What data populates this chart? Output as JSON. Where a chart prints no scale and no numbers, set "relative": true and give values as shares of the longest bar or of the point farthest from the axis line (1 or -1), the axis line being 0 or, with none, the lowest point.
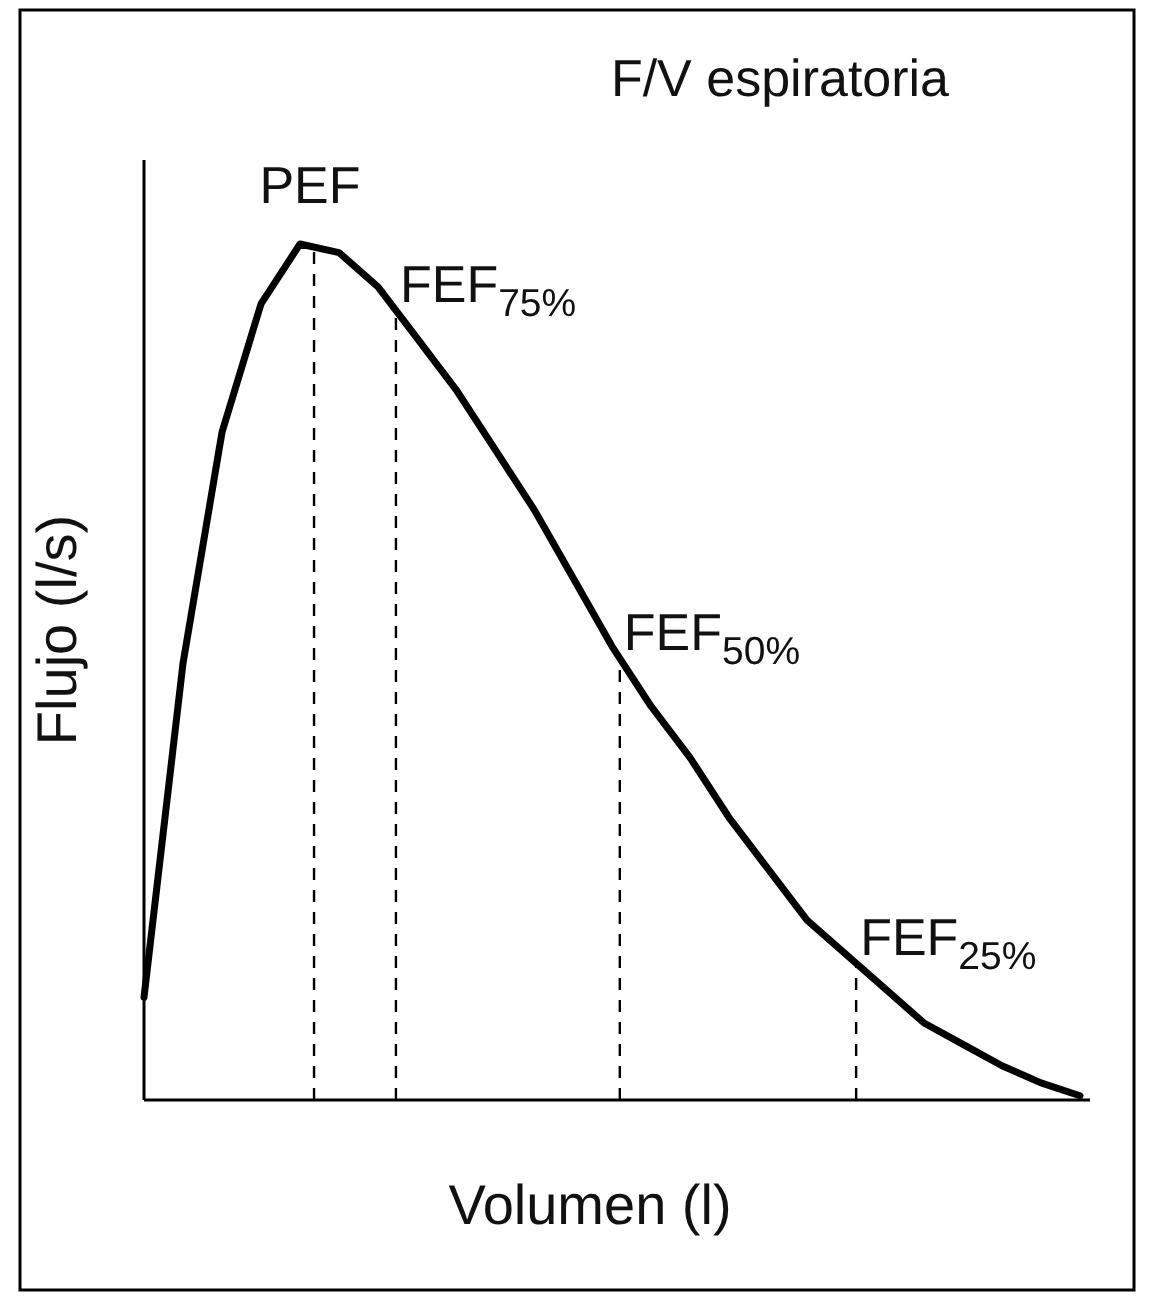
{
  "chart_data": {
    "type": "line",
    "title": "F/V espiratoria",
    "xlabel": "Volumen (l)",
    "ylabel": "Flujo (l/s)",
    "relative": true,
    "categories": [
      null,
      null,
      null,
      null,
      null,
      null,
      null,
      null,
      null,
      null,
      null,
      null,
      null,
      null,
      null,
      null,
      null,
      null,
      null,
      null,
      null,
      null,
      null,
      null,
      null
    ],
    "series": [
      {
        "color": "#000000",
        "line_style": "solid",
        "values": [
          0.12,
          0.51,
          0.78,
          0.93,
          1.0,
          0.99,
          0.95,
          0.89,
          0.83,
          0.76,
          0.69,
          0.61,
          0.53,
          0.46,
          0.4,
          0.33,
          0.27,
          0.21,
          0.17,
          0.13,
          0.09,
          0.065,
          0.04,
          0.02,
          0.005
        ]
      }
    ],
    "annotations": [
      "PEF",
      "FEF$_{75%}$",
      "FEF$_{50%}$",
      "FEF$_{25%}$"
    ]
  }
}
